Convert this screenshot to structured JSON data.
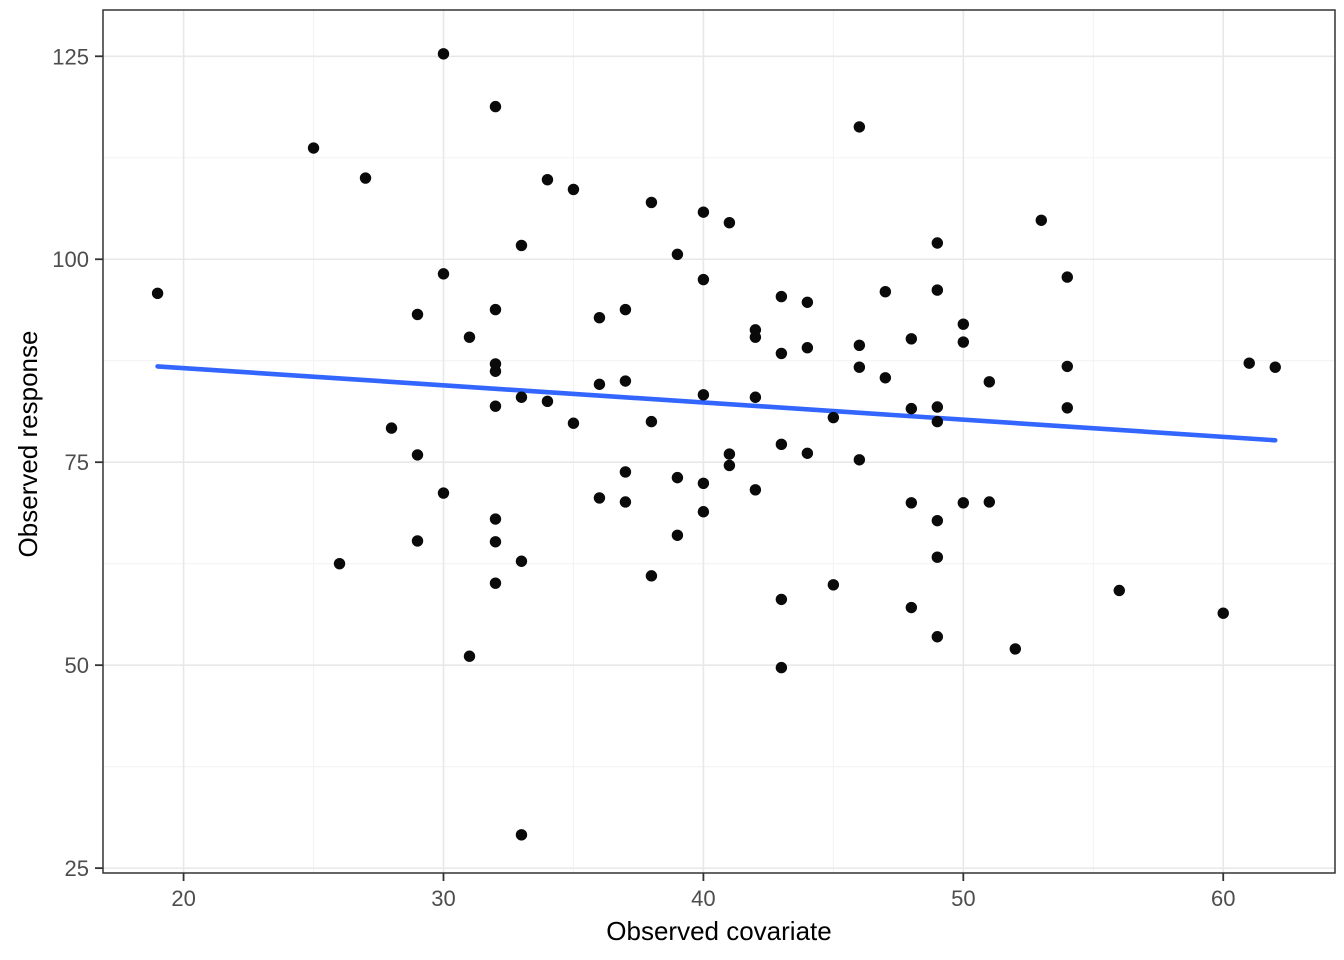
{
  "figure": {
    "x_axis_title": "Observed covariate",
    "y_axis_title": "Observed response"
  },
  "colors": {
    "background": "#FFFFFF",
    "point": "#0A0A0A",
    "line": "#3366FF",
    "grid_major": "#E8E8E8",
    "grid_minor": "#F3F3F3",
    "panel_border": "#333333",
    "tick_mark": "#333333",
    "tick_label": "#4D4D4D",
    "axis_title": "#000000"
  },
  "chart_data": {
    "type": "scatter",
    "title": "",
    "xlabel": "Observed covariate",
    "ylabel": "Observed response",
    "xlim": [
      16.9,
      64.3
    ],
    "ylim": [
      24.4,
      130.7
    ],
    "x_major_ticks": [
      20,
      30,
      40,
      50,
      60
    ],
    "x_minor_ticks": [
      25,
      35,
      45,
      55
    ],
    "y_major_ticks": [
      25,
      50,
      75,
      100,
      125
    ],
    "y_minor_ticks": [
      37.5,
      62.5,
      87.5,
      112.5
    ],
    "grid": true,
    "legend": false,
    "points": [
      [
        25,
        113.7
      ],
      [
        27,
        110.0
      ],
      [
        30,
        125.3
      ],
      [
        32,
        118.8
      ],
      [
        34,
        109.8
      ],
      [
        35,
        108.6
      ],
      [
        38,
        107.0
      ],
      [
        40,
        105.8
      ],
      [
        46,
        116.3
      ],
      [
        41,
        104.5
      ],
      [
        53,
        104.8
      ],
      [
        19,
        95.8
      ],
      [
        28,
        79.2
      ],
      [
        33,
        101.7
      ],
      [
        39,
        100.6
      ],
      [
        30,
        98.2
      ],
      [
        40,
        97.5
      ],
      [
        29,
        93.2
      ],
      [
        32,
        93.8
      ],
      [
        36,
        92.8
      ],
      [
        37,
        93.8
      ],
      [
        31,
        90.4
      ],
      [
        32,
        87.1
      ],
      [
        32,
        86.2
      ],
      [
        36,
        84.6
      ],
      [
        37,
        85.0
      ],
      [
        33,
        83.0
      ],
      [
        34,
        82.5
      ],
      [
        32,
        81.9
      ],
      [
        40,
        83.3
      ],
      [
        35,
        79.8
      ],
      [
        38,
        80.0
      ],
      [
        49,
        102.0
      ],
      [
        43,
        95.4
      ],
      [
        44,
        94.7
      ],
      [
        47,
        96.0
      ],
      [
        49,
        96.2
      ],
      [
        42,
        91.3
      ],
      [
        42,
        90.4
      ],
      [
        43,
        88.4
      ],
      [
        44,
        89.1
      ],
      [
        46,
        89.4
      ],
      [
        48,
        90.2
      ],
      [
        50,
        92.0
      ],
      [
        50,
        89.8
      ],
      [
        46,
        86.7
      ],
      [
        47,
        85.4
      ],
      [
        51,
        84.9
      ],
      [
        42,
        83.0
      ],
      [
        48,
        81.6
      ],
      [
        49,
        81.8
      ],
      [
        49,
        80.0
      ],
      [
        45,
        80.5
      ],
      [
        43,
        77.2
      ],
      [
        54,
        97.8
      ],
      [
        54,
        86.8
      ],
      [
        61,
        87.2
      ],
      [
        62,
        86.7
      ],
      [
        54,
        81.7
      ],
      [
        26,
        62.5
      ],
      [
        29,
        75.9
      ],
      [
        30,
        71.2
      ],
      [
        32,
        68.0
      ],
      [
        32,
        65.2
      ],
      [
        29,
        65.3
      ],
      [
        33,
        62.8
      ],
      [
        32,
        60.1
      ],
      [
        31,
        51.1
      ],
      [
        36,
        70.6
      ],
      [
        37,
        73.8
      ],
      [
        37,
        70.1
      ],
      [
        39,
        73.1
      ],
      [
        40,
        72.4
      ],
      [
        40,
        68.9
      ],
      [
        39,
        66.0
      ],
      [
        38,
        61.0
      ],
      [
        41,
        76.0
      ],
      [
        41,
        74.6
      ],
      [
        44,
        76.1
      ],
      [
        46,
        75.3
      ],
      [
        42,
        71.6
      ],
      [
        48,
        70.0
      ],
      [
        50,
        70.0
      ],
      [
        51,
        70.1
      ],
      [
        49,
        67.8
      ],
      [
        49,
        63.3
      ],
      [
        45,
        59.9
      ],
      [
        43,
        58.1
      ],
      [
        48,
        57.1
      ],
      [
        49,
        53.5
      ],
      [
        52,
        52.0
      ],
      [
        56,
        59.2
      ],
      [
        60,
        56.4
      ],
      [
        33,
        29.1
      ],
      [
        43,
        49.7
      ]
    ],
    "regression_line": {
      "x_start": 19,
      "y_start": 86.8,
      "x_end": 62,
      "y_end": 77.7
    }
  }
}
